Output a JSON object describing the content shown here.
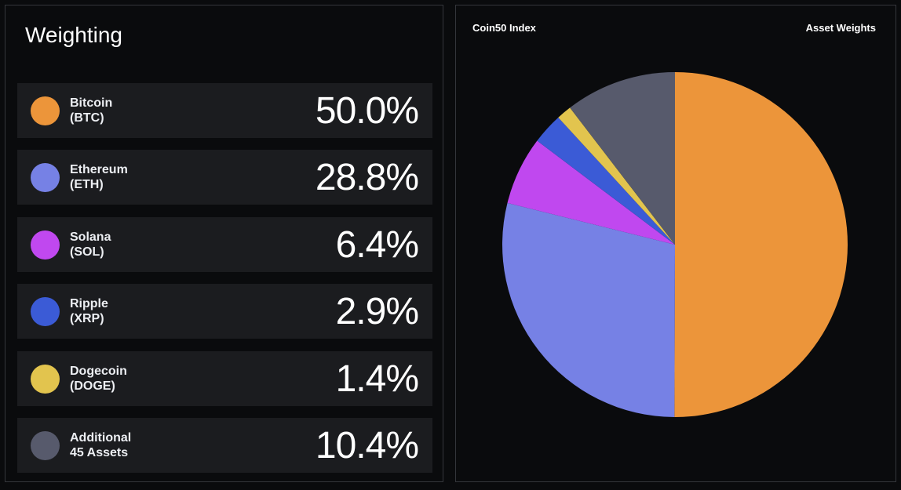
{
  "left_panel": {
    "title": "Weighting"
  },
  "right_panel": {
    "left_label": "Coin50 Index",
    "right_label": "Asset Weights"
  },
  "chart_data": {
    "type": "pie",
    "title": "Asset Weights",
    "start": "top",
    "direction": "clockwise",
    "slices": [
      {
        "name": "Bitcoin",
        "ticker": "(BTC)",
        "value": 50.0,
        "label": "50.0%",
        "color": "#ec953a"
      },
      {
        "name": "Ethereum",
        "ticker": "(ETH)",
        "value": 28.8,
        "label": "28.8%",
        "color": "#7681e5"
      },
      {
        "name": "Solana",
        "ticker": "(SOL)",
        "value": 6.4,
        "label": "6.4%",
        "color": "#c048ef"
      },
      {
        "name": "Ripple",
        "ticker": "(XRP)",
        "value": 2.9,
        "label": "2.9%",
        "color": "#3b5bd6"
      },
      {
        "name": "Dogecoin",
        "ticker": "(DOGE)",
        "value": 1.4,
        "label": "1.4%",
        "color": "#e2c44e"
      },
      {
        "name": "Additional",
        "ticker": "45 Assets",
        "value": 10.4,
        "label": "10.4%",
        "color": "#575a6c"
      }
    ]
  }
}
